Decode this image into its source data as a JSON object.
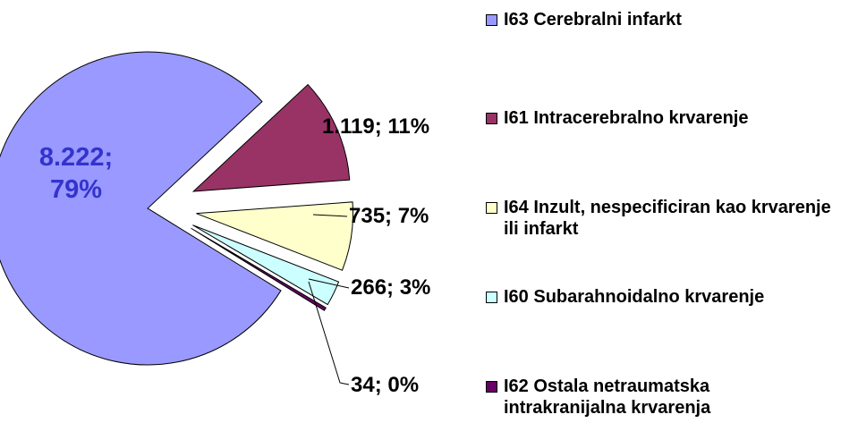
{
  "chart_data": {
    "type": "pie",
    "categories": [
      "I63 Cerebralni infarkt",
      "I61 Intracerebralno krvarenje",
      "I64 Inzult, nespecificiran kao krvarenje ili infarkt",
      "I60 Subarahnoidalno krvarenje",
      "I62 Ostala netraumatska intrakranijalna krvarenja"
    ],
    "values": [
      8222,
      1119,
      735,
      266,
      34
    ],
    "value_labels": [
      "8.222; 79%",
      "1.119; 11%",
      "735; 7%",
      "266; 3%",
      "34; 0%"
    ],
    "colors": [
      "#9999ff",
      "#993366",
      "#ffffcc",
      "#ccffff",
      "#660066"
    ],
    "legend": "right"
  }
}
